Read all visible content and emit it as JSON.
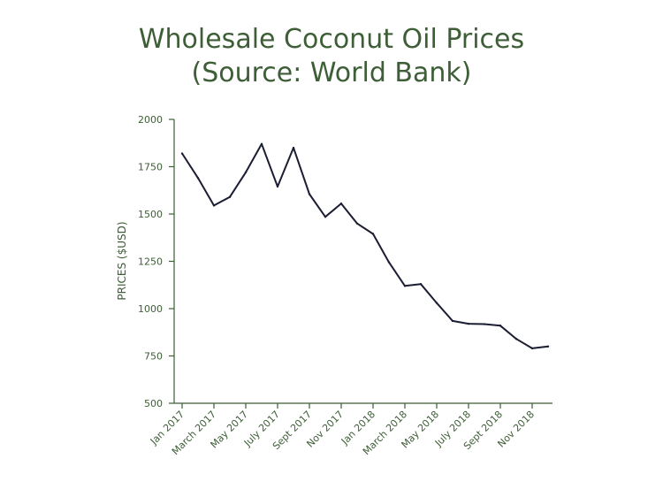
{
  "chart_data": {
    "type": "line",
    "title_lines": [
      "Wholesale Coconut Oil Prices",
      "(Source: World Bank)"
    ],
    "xlabel": "",
    "ylabel": "PRICES ($USD)",
    "ylim": [
      500,
      2000
    ],
    "yticks": [
      500,
      750,
      1000,
      1250,
      1500,
      1750,
      2000
    ],
    "xtick_labels": [
      "Jan 2017",
      "March 2017",
      "May 2017",
      "July 2017",
      "Sept 2017",
      "Nov 2017",
      "Jan 2018",
      "March 2018",
      "May 2018",
      "July 2018",
      "Sept 2018",
      "Nov 2018"
    ],
    "x": [
      "Jan 2017",
      "Feb 2017",
      "Mar 2017",
      "Apr 2017",
      "May 2017",
      "Jun 2017",
      "Jul 2017",
      "Aug 2017",
      "Sep 2017",
      "Oct 2017",
      "Nov 2017",
      "Dec 2017",
      "Jan 2018",
      "Feb 2018",
      "Mar 2018",
      "Apr 2018",
      "May 2018",
      "Jun 2018",
      "Jul 2018",
      "Aug 2018",
      "Sep 2018",
      "Oct 2018",
      "Nov 2018",
      "Dec 2018"
    ],
    "series": [
      {
        "values": [
          1820,
          1690,
          1545,
          1590,
          1720,
          1870,
          1645,
          1850,
          1605,
          1485,
          1555,
          1450,
          1395,
          1245,
          1120,
          1130,
          1030,
          935,
          920,
          918,
          910,
          840,
          790,
          800
        ]
      }
    ],
    "grid": false,
    "colors": {
      "title": "#3d5e36",
      "axis": "#3d5e36",
      "line": "#1b1d33"
    }
  }
}
